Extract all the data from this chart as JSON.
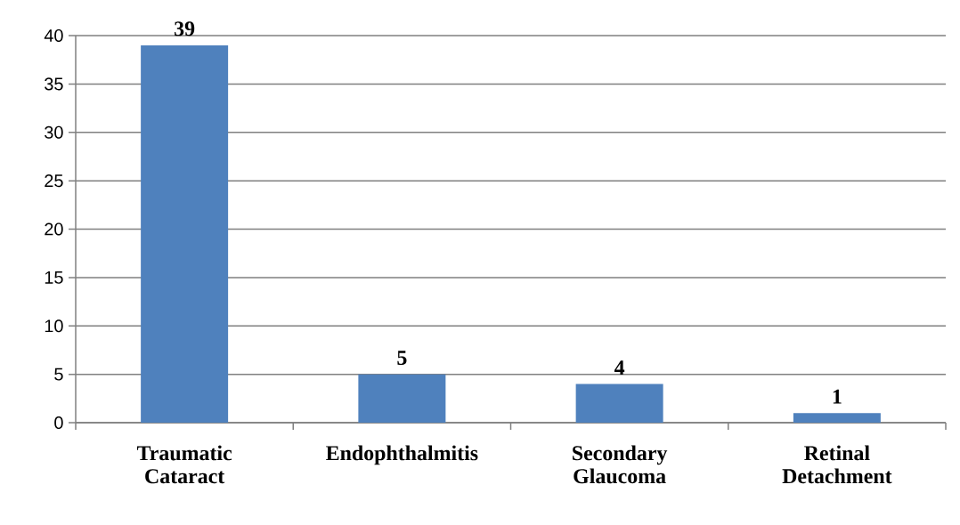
{
  "chart_data": {
    "type": "bar",
    "categories": [
      "Traumatic Cataract",
      "Endophthalmitis",
      "Secondary Glaucoma",
      "Retinal Detachment"
    ],
    "values": [
      39,
      5,
      4,
      1
    ],
    "color": "#4f81bd",
    "ylim": [
      0,
      40
    ],
    "yticks": [
      0,
      5,
      10,
      15,
      20,
      25,
      30,
      35,
      40
    ],
    "grid": "y",
    "data_labels": true
  }
}
